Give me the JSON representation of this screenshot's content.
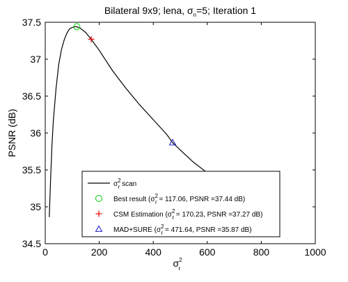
{
  "chart_data": {
    "type": "line",
    "title": {
      "pre": "Bilateral 9x9; lena, σ",
      "sub": "n",
      "post": "=5; Iteration 1"
    },
    "xlabel": {
      "base": "σ",
      "sup": "2",
      "sub": "r"
    },
    "ylabel": "PSNR (dB)",
    "xlim": [
      0,
      1000
    ],
    "ylim": [
      34.5,
      37.5
    ],
    "grid": false,
    "x_ticks": [
      0,
      200,
      400,
      600,
      800,
      1000
    ],
    "y_ticks": [
      34.5,
      35,
      35.5,
      36,
      36.5,
      37,
      37.5
    ],
    "x_tick_labels": [
      "0",
      "200",
      "400",
      "600",
      "800",
      "1000"
    ],
    "y_tick_labels": [
      "34.5",
      "35",
      "35.5",
      "36",
      "36.5",
      "37",
      "37.5"
    ],
    "legend_placement": "bottom-right",
    "series": [
      {
        "kind": "line",
        "color": "#000000",
        "legend": {
          "base": "σ",
          "sup": "2",
          "sub": "r",
          "post": " scan"
        },
        "x": [
          15,
          20,
          25,
          30,
          40,
          50,
          60,
          70,
          80,
          90,
          100,
          110,
          117.06,
          130,
          150,
          170.23,
          200,
          250,
          300,
          350,
          400,
          450,
          471.64,
          500,
          550,
          600
        ],
        "y": [
          34.86,
          35.4,
          35.84,
          36.16,
          36.6,
          36.93,
          37.13,
          37.26,
          37.35,
          37.41,
          37.43,
          37.44,
          37.44,
          37.42,
          37.36,
          37.27,
          37.12,
          36.84,
          36.6,
          36.38,
          36.18,
          35.98,
          35.87,
          35.77,
          35.6,
          35.46
        ]
      },
      {
        "kind": "marker",
        "marker": "circle",
        "color": "#00cc00",
        "x": [
          117.06
        ],
        "y": [
          37.44
        ],
        "legend": {
          "pre": "Best result (σ",
          "sup": "2",
          "sub": "r",
          "post": " = 117.06, PSNR =37.44 dB)"
        }
      },
      {
        "kind": "marker",
        "marker": "plus",
        "color": "#ee0000",
        "x": [
          170.23
        ],
        "y": [
          37.27
        ],
        "legend": {
          "pre": "CSM Estimation (σ",
          "sup": "2",
          "sub": "r",
          "post": " = 170.23, PSNR =37.27 dB)"
        }
      },
      {
        "kind": "marker",
        "marker": "triangle",
        "color": "#1a1acc",
        "x": [
          471.64
        ],
        "y": [
          35.87
        ],
        "legend": {
          "pre": "MAD+SURE (σ",
          "sup": "2",
          "sub": "r",
          "post": " = 471.64, PSNR =35.87 dB)"
        }
      }
    ]
  }
}
